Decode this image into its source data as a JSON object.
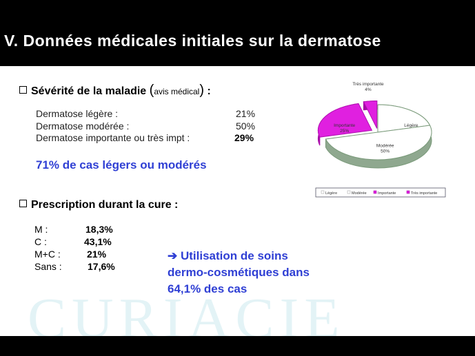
{
  "slide_title": "V. Données médicales initiales sur la dermatose",
  "severity": {
    "heading": "Sévérité de la maladie",
    "paren_open": "(",
    "paren_note": "avis médical",
    "paren_close": ")",
    "colon": ":",
    "rows": [
      {
        "label": "Dermatose légère :",
        "value": "21%"
      },
      {
        "label": "Dermatose modérée :",
        "value": "50%"
      },
      {
        "label": "Dermatose importante ou très impt :",
        "value": "29%"
      }
    ],
    "highlight": "71% de cas légers ou modérés"
  },
  "prescription": {
    "heading": "Prescription durant la cure :",
    "rows": [
      {
        "label": "M :",
        "value": "18,3%"
      },
      {
        "label": "C :",
        "value": "43,1%"
      },
      {
        "label": "M+C :",
        "value": "21%"
      },
      {
        "label": "Sans :",
        "value": "17,6%"
      }
    ],
    "conclusion_arrow": "➔",
    "conclusion_lines": [
      "Utilisation de soins",
      "dermo-cosmétiques dans",
      "64,1% des cas"
    ]
  },
  "watermark": "CURIACIE",
  "chart_data": {
    "type": "pie",
    "categories": [
      "Légère",
      "Modérée",
      "Importante",
      "Très importante"
    ],
    "values": [
      21,
      50,
      25,
      4
    ],
    "data_labels": [
      {
        "name": "Légère",
        "pct": "21%"
      },
      {
        "name": "Modérée",
        "pct": "50%"
      },
      {
        "name": "Importante",
        "pct": "25%"
      },
      {
        "name": "Très importante",
        "pct": "4%"
      }
    ],
    "colors": [
      "#ffffff",
      "#ffffff",
      "#e020e0",
      "#e020e0"
    ],
    "edge_colors": [
      "#7a9a7a",
      "#7a9a7a",
      "#b010b0",
      "#b010b0"
    ],
    "legend": {
      "placement": "bottom",
      "entries": [
        {
          "label": "Légère",
          "color": "#ffffff"
        },
        {
          "label": "Modérée",
          "color": "#ffffff"
        },
        {
          "label": "Importante",
          "color": "#e020e0"
        },
        {
          "label": "Très importante",
          "color": "#e020e0"
        }
      ]
    }
  }
}
